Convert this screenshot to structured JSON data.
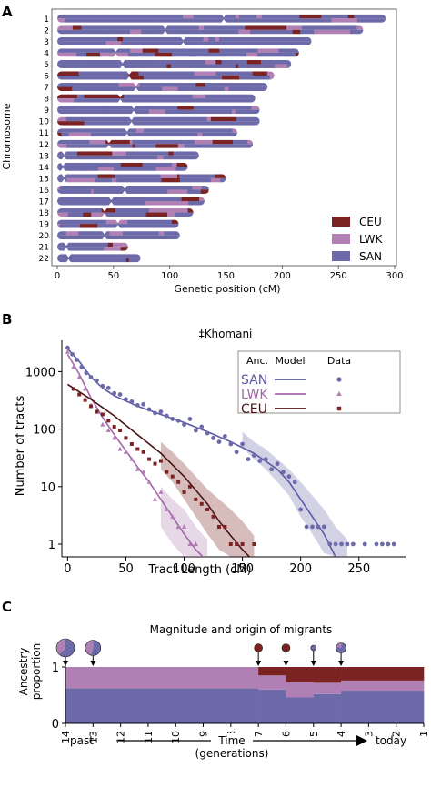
{
  "colors": {
    "CEU": "#7b2222",
    "LWK": "#b07fb3",
    "SAN": "#6c6aa9"
  },
  "panels": {
    "a": "A",
    "b": "B",
    "c": "C"
  },
  "chart_data": [
    {
      "type": "bar",
      "chart": "karyogram",
      "title": "",
      "xlabel": "Genetic position (cM)",
      "ylabel": "Chromosome",
      "xlim": [
        0,
        300
      ],
      "xticks": [
        0,
        50,
        100,
        150,
        200,
        250,
        300
      ],
      "legend": {
        "placement": "bottom-right",
        "entries": [
          "CEU",
          "LWK",
          "SAN"
        ]
      },
      "chromosomes": [
        {
          "label": "1",
          "length": 292,
          "centromere": 148
        },
        {
          "label": "2",
          "length": 272,
          "centromere": 96
        },
        {
          "label": "3",
          "length": 226,
          "centromere": 112
        },
        {
          "label": "4",
          "length": 215,
          "centromere": 52
        },
        {
          "label": "5",
          "length": 208,
          "centromere": 58
        },
        {
          "label": "6",
          "length": 193,
          "centromere": 64
        },
        {
          "label": "7",
          "length": 187,
          "centromere": 70
        },
        {
          "label": "8",
          "length": 176,
          "centromere": 56
        },
        {
          "label": "9",
          "length": 180,
          "centromere": 68
        },
        {
          "label": "10",
          "length": 180,
          "centromere": 66
        },
        {
          "label": "11",
          "length": 160,
          "centromere": 62
        },
        {
          "label": "12",
          "length": 174,
          "centromere": 46
        },
        {
          "label": "13",
          "length": 126,
          "centromere": 6
        },
        {
          "label": "14",
          "length": 116,
          "centromere": 5
        },
        {
          "label": "15",
          "length": 150,
          "centromere": 6
        },
        {
          "label": "16",
          "length": 135,
          "centromere": 60
        },
        {
          "label": "17",
          "length": 131,
          "centromere": 48
        },
        {
          "label": "18",
          "length": 121,
          "centromere": 42
        },
        {
          "label": "19",
          "length": 108,
          "centromere": 54
        },
        {
          "label": "20",
          "length": 109,
          "centromere": 42
        },
        {
          "label": "21",
          "length": 63,
          "centromere": 8
        },
        {
          "label": "22",
          "length": 74,
          "centromere": 10
        }
      ]
    },
    {
      "type": "scatter",
      "chart": "tract-lengths",
      "title": "‡Khomani",
      "xlabel": "Tract Length (cM)",
      "ylabel": "Number of tracts",
      "yscale": "log",
      "xlim": [
        -5,
        290
      ],
      "ylim": [
        0.6,
        3500
      ],
      "xticks": [
        0,
        50,
        100,
        150,
        200,
        250
      ],
      "yticks": [
        1,
        10,
        100,
        1000
      ],
      "legend": {
        "placement": "top-right",
        "headers": [
          "Anc.",
          "Model",
          "Data"
        ]
      },
      "series": [
        {
          "name": "SAN",
          "model": [
            [
              0,
              2500
            ],
            [
              10,
              1500
            ],
            [
              20,
              800
            ],
            [
              30,
              520
            ],
            [
              40,
              380
            ],
            [
              60,
              250
            ],
            [
              80,
              180
            ],
            [
              100,
              130
            ],
            [
              120,
              90
            ],
            [
              140,
              60
            ],
            [
              160,
              38
            ],
            [
              180,
              20
            ],
            [
              190,
              12
            ],
            [
              200,
              6
            ],
            [
              210,
              3
            ],
            [
              220,
              1.5
            ],
            [
              230,
              0.6
            ]
          ],
          "band": [
            [
              150,
              48,
              90
            ],
            [
              160,
              30,
              60
            ],
            [
              170,
              20,
              45
            ],
            [
              180,
              12,
              30
            ],
            [
              190,
              7,
              20
            ],
            [
              200,
              3,
              12
            ],
            [
              210,
              1.5,
              7
            ],
            [
              220,
              0.7,
              4
            ],
            [
              230,
              0.6,
              2
            ],
            [
              240,
              0.6,
              1.2
            ]
          ],
          "data": [
            [
              0,
              2600
            ],
            [
              4,
              2000
            ],
            [
              8,
              1600
            ],
            [
              12,
              1200
            ],
            [
              16,
              950
            ],
            [
              20,
              800
            ],
            [
              25,
              700
            ],
            [
              30,
              560
            ],
            [
              35,
              520
            ],
            [
              40,
              420
            ],
            [
              45,
              400
            ],
            [
              50,
              330
            ],
            [
              55,
              300
            ],
            [
              60,
              260
            ],
            [
              65,
              270
            ],
            [
              70,
              220
            ],
            [
              75,
              190
            ],
            [
              80,
              200
            ],
            [
              85,
              170
            ],
            [
              90,
              150
            ],
            [
              95,
              140
            ],
            [
              100,
              120
            ],
            [
              105,
              150
            ],
            [
              110,
              95
            ],
            [
              115,
              110
            ],
            [
              120,
              85
            ],
            [
              125,
              70
            ],
            [
              130,
              60
            ],
            [
              135,
              75
            ],
            [
              140,
              55
            ],
            [
              145,
              40
            ],
            [
              150,
              55
            ],
            [
              155,
              30
            ],
            [
              160,
              35
            ],
            [
              165,
              28
            ],
            [
              170,
              30
            ],
            [
              175,
              20
            ],
            [
              180,
              25
            ],
            [
              185,
              18
            ],
            [
              190,
              15
            ],
            [
              195,
              12
            ],
            [
              200,
              4
            ],
            [
              205,
              2
            ],
            [
              210,
              2
            ],
            [
              215,
              2
            ],
            [
              220,
              2
            ],
            [
              225,
              1
            ],
            [
              230,
              1
            ],
            [
              235,
              1
            ],
            [
              240,
              1
            ],
            [
              245,
              1
            ],
            [
              255,
              1
            ],
            [
              265,
              1
            ],
            [
              270,
              1
            ],
            [
              275,
              1
            ],
            [
              280,
              1
            ]
          ]
        },
        {
          "name": "LWK",
          "model": [
            [
              0,
              2000
            ],
            [
              10,
              900
            ],
            [
              20,
              350
            ],
            [
              30,
              160
            ],
            [
              40,
              80
            ],
            [
              50,
              42
            ],
            [
              60,
              22
            ],
            [
              70,
              12
            ],
            [
              80,
              6
            ],
            [
              90,
              3
            ],
            [
              100,
              1.5
            ],
            [
              110,
              0.8
            ],
            [
              120,
              0.5
            ]
          ],
          "band": [
            [
              80,
              2,
              10
            ],
            [
              90,
              1,
              6
            ],
            [
              100,
              0.6,
              4
            ],
            [
              110,
              0.6,
              2
            ],
            [
              120,
              0.6,
              1.2
            ]
          ],
          "data": [
            [
              0,
              2200
            ],
            [
              5,
              1200
            ],
            [
              10,
              800
            ],
            [
              15,
              500
            ],
            [
              20,
              260
            ],
            [
              25,
              200
            ],
            [
              30,
              120
            ],
            [
              35,
              95
            ],
            [
              40,
              70
            ],
            [
              45,
              45
            ],
            [
              50,
              40
            ],
            [
              55,
              30
            ],
            [
              60,
              20
            ],
            [
              65,
              18
            ],
            [
              70,
              12
            ],
            [
              75,
              6
            ],
            [
              80,
              8
            ],
            [
              85,
              4
            ],
            [
              90,
              3
            ],
            [
              95,
              2
            ],
            [
              100,
              2
            ],
            [
              105,
              1
            ],
            [
              110,
              1
            ]
          ]
        },
        {
          "name": "CEU",
          "model": [
            [
              0,
              600
            ],
            [
              20,
              330
            ],
            [
              40,
              170
            ],
            [
              60,
              80
            ],
            [
              80,
              38
            ],
            [
              100,
              15
            ],
            [
              120,
              5
            ],
            [
              130,
              2.5
            ],
            [
              140,
              1.4
            ],
            [
              150,
              0.8
            ],
            [
              160,
              0.5
            ]
          ],
          "band": [
            [
              80,
              20,
              60
            ],
            [
              90,
              12,
              40
            ],
            [
              100,
              6,
              25
            ],
            [
              110,
              3,
              15
            ],
            [
              120,
              1.5,
              9
            ],
            [
              130,
              0.8,
              6
            ],
            [
              140,
              0.6,
              4
            ],
            [
              150,
              0.6,
              2.5
            ],
            [
              160,
              0.6,
              1.4
            ]
          ],
          "data": [
            [
              5,
              500
            ],
            [
              10,
              400
            ],
            [
              15,
              320
            ],
            [
              20,
              250
            ],
            [
              25,
              200
            ],
            [
              30,
              180
            ],
            [
              35,
              140
            ],
            [
              40,
              110
            ],
            [
              45,
              95
            ],
            [
              50,
              70
            ],
            [
              55,
              55
            ],
            [
              60,
              45
            ],
            [
              65,
              40
            ],
            [
              70,
              30
            ],
            [
              75,
              25
            ],
            [
              80,
              28
            ],
            [
              85,
              18
            ],
            [
              90,
              15
            ],
            [
              95,
              12
            ],
            [
              100,
              8
            ],
            [
              105,
              10
            ],
            [
              110,
              6
            ],
            [
              115,
              5
            ],
            [
              120,
              4
            ],
            [
              125,
              3
            ],
            [
              130,
              2
            ],
            [
              135,
              2
            ],
            [
              140,
              1
            ],
            [
              145,
              1
            ],
            [
              150,
              1
            ],
            [
              160,
              1
            ]
          ]
        }
      ]
    },
    {
      "type": "area",
      "chart": "migration-history",
      "title": "Magnitude and origin of migrants",
      "xlabel": "Time\n(generations)",
      "ylabel": "Ancestry\nproportion",
      "x_left_label": "past",
      "x_right_label": "today",
      "xticks": [
        14,
        13,
        12,
        11,
        10,
        9,
        8,
        7,
        6,
        5,
        4,
        3,
        2,
        1
      ],
      "yticks": [
        0,
        1
      ],
      "segments": [
        {
          "from": 14,
          "to": 7,
          "SAN": 0.62,
          "LWK": 0.38,
          "CEU": 0.0
        },
        {
          "from": 7,
          "to": 6,
          "SAN": 0.6,
          "LWK": 0.25,
          "CEU": 0.15
        },
        {
          "from": 6,
          "to": 5,
          "SAN": 0.46,
          "LWK": 0.27,
          "CEU": 0.27
        },
        {
          "from": 5,
          "to": 4,
          "SAN": 0.52,
          "LWK": 0.2,
          "CEU": 0.28
        },
        {
          "from": 4,
          "to": 1,
          "SAN": 0.58,
          "LWK": 0.18,
          "CEU": 0.24
        }
      ],
      "migrants": [
        {
          "gen": 14,
          "size": 1.0,
          "SAN": 0.62,
          "LWK": 0.38,
          "CEU": 0.0
        },
        {
          "gen": 13,
          "size": 0.85,
          "SAN": 0.55,
          "LWK": 0.45,
          "CEU": 0.0
        },
        {
          "gen": 7,
          "size": 0.45,
          "SAN": 0.0,
          "LWK": 0.0,
          "CEU": 1.0
        },
        {
          "gen": 6,
          "size": 0.45,
          "SAN": 0.0,
          "LWK": 0.0,
          "CEU": 1.0
        },
        {
          "gen": 5,
          "size": 0.25,
          "SAN": 1.0,
          "LWK": 0.0,
          "CEU": 0.0
        },
        {
          "gen": 4,
          "size": 0.55,
          "SAN": 0.8,
          "LWK": 0.2,
          "CEU": 0.0
        }
      ]
    }
  ]
}
